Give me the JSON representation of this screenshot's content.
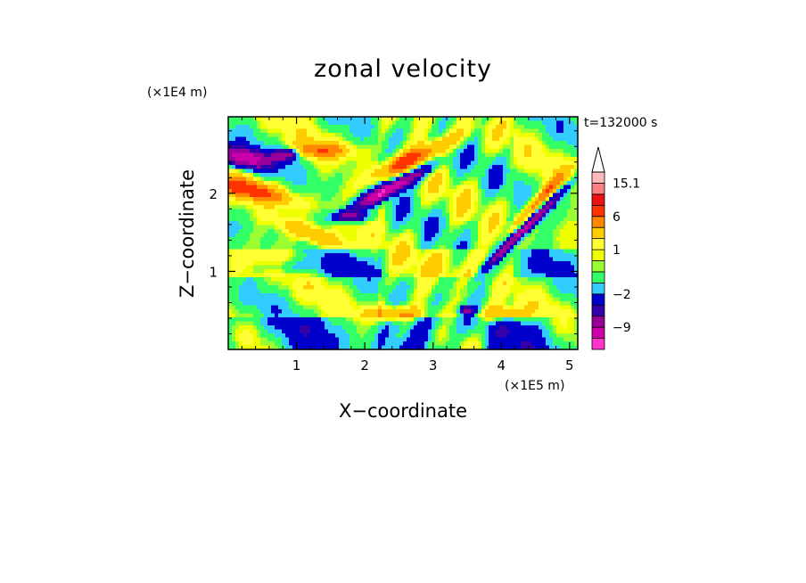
{
  "chart_data": {
    "type": "heatmap",
    "title": "zonal velocity",
    "xlabel": "X−coordinate",
    "ylabel": "Z−coordinate",
    "x_scale_label": "(×1E5 m)",
    "y_scale_label": "(×1E4 m)",
    "time_label": "t=132000 s",
    "xlim": [
      0,
      5.12
    ],
    "ylim": [
      0,
      2.98
    ],
    "x_ticks": [
      "1",
      "2",
      "3",
      "4",
      "5"
    ],
    "x_tick_values": [
      1,
      2,
      3,
      4,
      5
    ],
    "y_ticks": [
      "1",
      "2"
    ],
    "y_tick_values": [
      1,
      2
    ],
    "colorbar": {
      "levels": [
        -15,
        -12,
        -9,
        -6,
        -4,
        -2,
        -1,
        0,
        0.5,
        1,
        2,
        4,
        6,
        9,
        12,
        15.1
      ],
      "colors": [
        "#ff33cc",
        "#cc00aa",
        "#990099",
        "#3300aa",
        "#0000cc",
        "#33ccff",
        "#33ff66",
        "#99ff33",
        "#eeff00",
        "#ffff33",
        "#ffcc00",
        "#ff8800",
        "#ff3300",
        "#ee1111",
        "#ff8080",
        "#ffbbbb"
      ],
      "tick_labels": [
        "15.1",
        "6",
        "1",
        "−2",
        "−9"
      ],
      "tick_levels": [
        15.1,
        6,
        1,
        -2,
        -9
      ],
      "extend": "max"
    },
    "grid": false
  }
}
